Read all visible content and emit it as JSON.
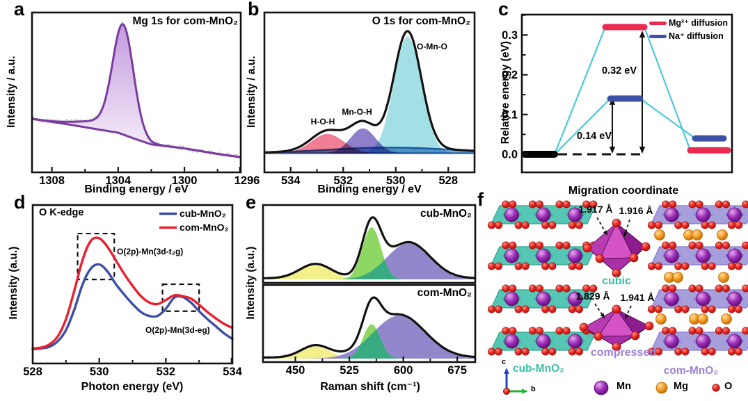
{
  "panel_a": {
    "label": "a",
    "title": "Mg 1s for com-MnO₂",
    "xlabel": "Binding energy / eV",
    "ylabel": "Intensity / a.u.",
    "xticks": [
      "1308",
      "1304",
      "1300",
      "1296"
    ],
    "line_color": "#7a3ba1"
  },
  "panel_b": {
    "label": "b",
    "title": "O 1s for com-MnO₂",
    "xlabel": "Binding energy / eV",
    "ylabel": "Intensity / a.u.",
    "xticks": [
      "534",
      "532",
      "530",
      "528"
    ],
    "peak_labels": {
      "hoh": "H-O-H",
      "mnoh": "Mn-O-H",
      "omno": "O-Mn-O"
    }
  },
  "panel_c": {
    "label": "c",
    "xlabel": "Migration coordinate",
    "ylabel": "Relative energy (eV)",
    "yticks": [
      "0.3",
      "0.2",
      "0.1",
      "0.0"
    ],
    "legend": {
      "mg": "Mg²⁺ diffusion",
      "na": "Na⁺ diffusion"
    },
    "barrier_mg": "0.32 eV",
    "barrier_na": "0.14 eV"
  },
  "panel_d": {
    "label": "d",
    "note": "O K-edge",
    "xlabel": "Photon energy (eV)",
    "ylabel": "Intensity (a.u.)",
    "xticks": [
      "528",
      "530",
      "532",
      "534"
    ],
    "legend": {
      "cub": "cub-MnO₂",
      "com": "com-MnO₂"
    },
    "ann_t2g": "O(2p)-Mn(3d-t₂g)",
    "ann_eg": "O(2p)-Mn(3d-eg)"
  },
  "panel_e": {
    "label": "e",
    "xlabel": "Raman shift (cm⁻¹)",
    "ylabel": "Intensity (a.u.)",
    "xticks": [
      "450",
      "525",
      "600",
      "675"
    ],
    "top_label": "cub-MnO₂",
    "bottom_label": "com-MnO₂"
  },
  "panel_f": {
    "label": "f",
    "bond_top_left": "1.917 Å",
    "bond_top_right": "1.916 Å",
    "bond_bot_left": "1.829 Å",
    "bond_bot_right": "1.941 Å",
    "octahedron_top": "cubic",
    "octahedron_bottom": "compressed",
    "left_structure": "cub-MnO₂",
    "right_structure": "com-MnO₂",
    "legend": {
      "mn": "Mn",
      "mg": "Mg",
      "o": "O"
    },
    "axes": {
      "vertical": "c",
      "horizontal": "b"
    },
    "colors": {
      "cub_slab": "#56c7b4",
      "cub_slab_dark": "#1f8f7c",
      "cub_slab_stroke": "#2fa38d",
      "com_slab": "#a79fdc",
      "com_slab_dark": "#6a5cb8",
      "com_slab_stroke": "#8579cb",
      "cub_text": "#3bbfa4",
      "com_text": "#9b82d8",
      "mn": "#9a2bb5",
      "mg": "#f59a23",
      "o": "#e5261f",
      "octahedron": "#c238ab"
    }
  },
  "chart_data": [
    {
      "id": "a",
      "type": "area",
      "title": "Mg 1s for com-MnO₂",
      "xlabel": "Binding energy / eV",
      "ylabel": "Intensity / a.u.",
      "xlim": [
        1309.2,
        1296.6
      ],
      "x_reversed": true,
      "xticks": [
        1308,
        1304,
        1300,
        1296
      ],
      "minor_ticks": [
        1306,
        1302,
        1298
      ],
      "peak": {
        "name": "Mg 1s",
        "center": 1303.7,
        "sigma": 0.62,
        "height": 0.655
      },
      "shoulder": {
        "center": 1304.9,
        "sigma": 1.4,
        "height": 0.05
      },
      "baseline": [
        [
          1309.2,
          0.335
        ],
        [
          1307,
          0.3
        ],
        [
          1305,
          0.265
        ],
        [
          1304,
          0.248
        ],
        [
          1303,
          0.21
        ],
        [
          1302,
          0.175
        ],
        [
          1300,
          0.15
        ],
        [
          1298,
          0.115
        ],
        [
          1296.6,
          0.095
        ]
      ],
      "line_color": "#7a3ba1"
    },
    {
      "id": "b",
      "type": "fitted_xps",
      "title": "O 1s for com-MnO₂",
      "xlabel": "Binding energy / eV",
      "ylabel": "Intensity / a.u.",
      "xlim": [
        535,
        527
      ],
      "x_reversed": true,
      "xticks": [
        534,
        532,
        530,
        528
      ],
      "minor_ticks": [
        533,
        531,
        529
      ],
      "baseline_level": 0.12,
      "components": [
        {
          "name": "background",
          "center": 530.2,
          "sigma": 2.4,
          "height": 0.035,
          "color": "#74a9db",
          "line": "#2b63b0"
        },
        {
          "name": "H-O-H",
          "center": 532.6,
          "sigma": 0.62,
          "height": 0.12,
          "color": "#f07f95"
        },
        {
          "name": "Mn-O-H",
          "center": 531.25,
          "sigma": 0.48,
          "height": 0.155,
          "color": "#8f7fca"
        },
        {
          "name": "O-Mn-O",
          "center": 529.55,
          "sigma": 0.52,
          "height": 0.73,
          "color": "#a3e0e5"
        }
      ],
      "envelope_color": "#111111"
    },
    {
      "id": "c",
      "type": "energy_profile",
      "xlabel": "Migration coordinate",
      "ylabel": "Relative energy (eV)",
      "yticks": [
        0.3,
        0.2,
        0.1,
        0.0
      ],
      "minor_yticks": [
        0.35,
        0.25,
        0.15,
        0.05
      ],
      "initial_level_eV": 0.0,
      "series": [
        {
          "name": "Mg²⁺ diffusion",
          "color": "#ea2a4e",
          "transition_eV": 0.32,
          "final_eV": 0.01,
          "barrier_label": "0.32 eV"
        },
        {
          "name": "Na⁺ diffusion",
          "color": "#3c51a5",
          "transition_eV": 0.14,
          "final_eV": 0.04,
          "barrier_label": "0.14 eV"
        }
      ],
      "connector_color": "#4cc8d9"
    },
    {
      "id": "d",
      "type": "line",
      "note": "O K-edge",
      "xlabel": "Photon energy (eV)",
      "ylabel": "Intensity (a.u.)",
      "xlim": [
        528,
        534
      ],
      "xticks": [
        528,
        530,
        532,
        534
      ],
      "minor_ticks": [
        529,
        531,
        533
      ],
      "x": [
        528,
        528.25,
        528.5,
        528.75,
        529,
        529.25,
        529.5,
        529.75,
        530,
        530.25,
        530.5,
        530.75,
        531,
        531.25,
        531.5,
        531.75,
        532,
        532.25,
        532.5,
        532.75,
        533,
        533.25,
        533.5,
        533.75,
        534
      ],
      "series": [
        {
          "name": "cub-MnO₂",
          "color": "#3b4ea5",
          "y": [
            0.09,
            0.095,
            0.105,
            0.14,
            0.21,
            0.34,
            0.5,
            0.6,
            0.625,
            0.58,
            0.5,
            0.435,
            0.375,
            0.325,
            0.3,
            0.3,
            0.345,
            0.415,
            0.42,
            0.385,
            0.33,
            0.28,
            0.235,
            0.19,
            0.155
          ]
        },
        {
          "name": "com-MnO₂",
          "color": "#ea1d2c",
          "y": [
            0.095,
            0.1,
            0.12,
            0.17,
            0.28,
            0.46,
            0.655,
            0.775,
            0.79,
            0.735,
            0.65,
            0.565,
            0.49,
            0.425,
            0.385,
            0.375,
            0.4,
            0.43,
            0.425,
            0.41,
            0.37,
            0.325,
            0.285,
            0.25,
            0.225
          ]
        }
      ],
      "annotations": [
        "O(2p)-Mn(3d-t₂g)",
        "O(2p)-Mn(3d-eg)"
      ],
      "dashed_boxes": [
        [
          529.35,
          530.45,
          0.53,
          0.82
        ],
        [
          531.9,
          533.0,
          0.33,
          0.5
        ]
      ]
    },
    {
      "id": "e",
      "type": "raman",
      "xlabel": "Raman shift (cm⁻¹)",
      "ylabel": "Intensity (a.u.)",
      "xlim": [
        405,
        700
      ],
      "xticks": [
        450,
        525,
        600,
        675
      ],
      "minor_ticks": [
        487.5,
        562.5,
        637.5
      ],
      "panels": [
        {
          "name": "cub-MnO₂",
          "components": [
            {
              "center": 478,
              "sigma": 22,
              "height": 0.2,
              "color": "#f3f08a"
            },
            {
              "center": 556,
              "sigma": 13,
              "height": 0.72,
              "color": "#8ed763"
            },
            {
              "center": 607,
              "sigma": 30,
              "height": 0.5,
              "color": "#9187ca"
            }
          ]
        },
        {
          "name": "com-MnO₂",
          "components": [
            {
              "center": 478,
              "sigma": 20,
              "height": 0.17,
              "color": "#f3f08a"
            },
            {
              "center": 556,
              "sigma": 12,
              "height": 0.48,
              "color": "#8ed763"
            },
            {
              "center": 594,
              "sigma": 36,
              "height": 0.6,
              "color": "#9187ca"
            }
          ]
        }
      ],
      "overlap_color": "#38ab80"
    },
    {
      "id": "f",
      "type": "structure",
      "description": "Layered MnO₂ structures with MnO₆ octahedra",
      "bond_lengths_cubic": [
        "1.917 Å",
        "1.916 Å"
      ],
      "bond_lengths_compressed": [
        "1.829 Å",
        "1.941 Å"
      ],
      "labels": [
        "cubic",
        "compressed",
        "cub-MnO₂",
        "com-MnO₂"
      ],
      "atoms": [
        "Mn",
        "Mg",
        "O"
      ]
    }
  ]
}
